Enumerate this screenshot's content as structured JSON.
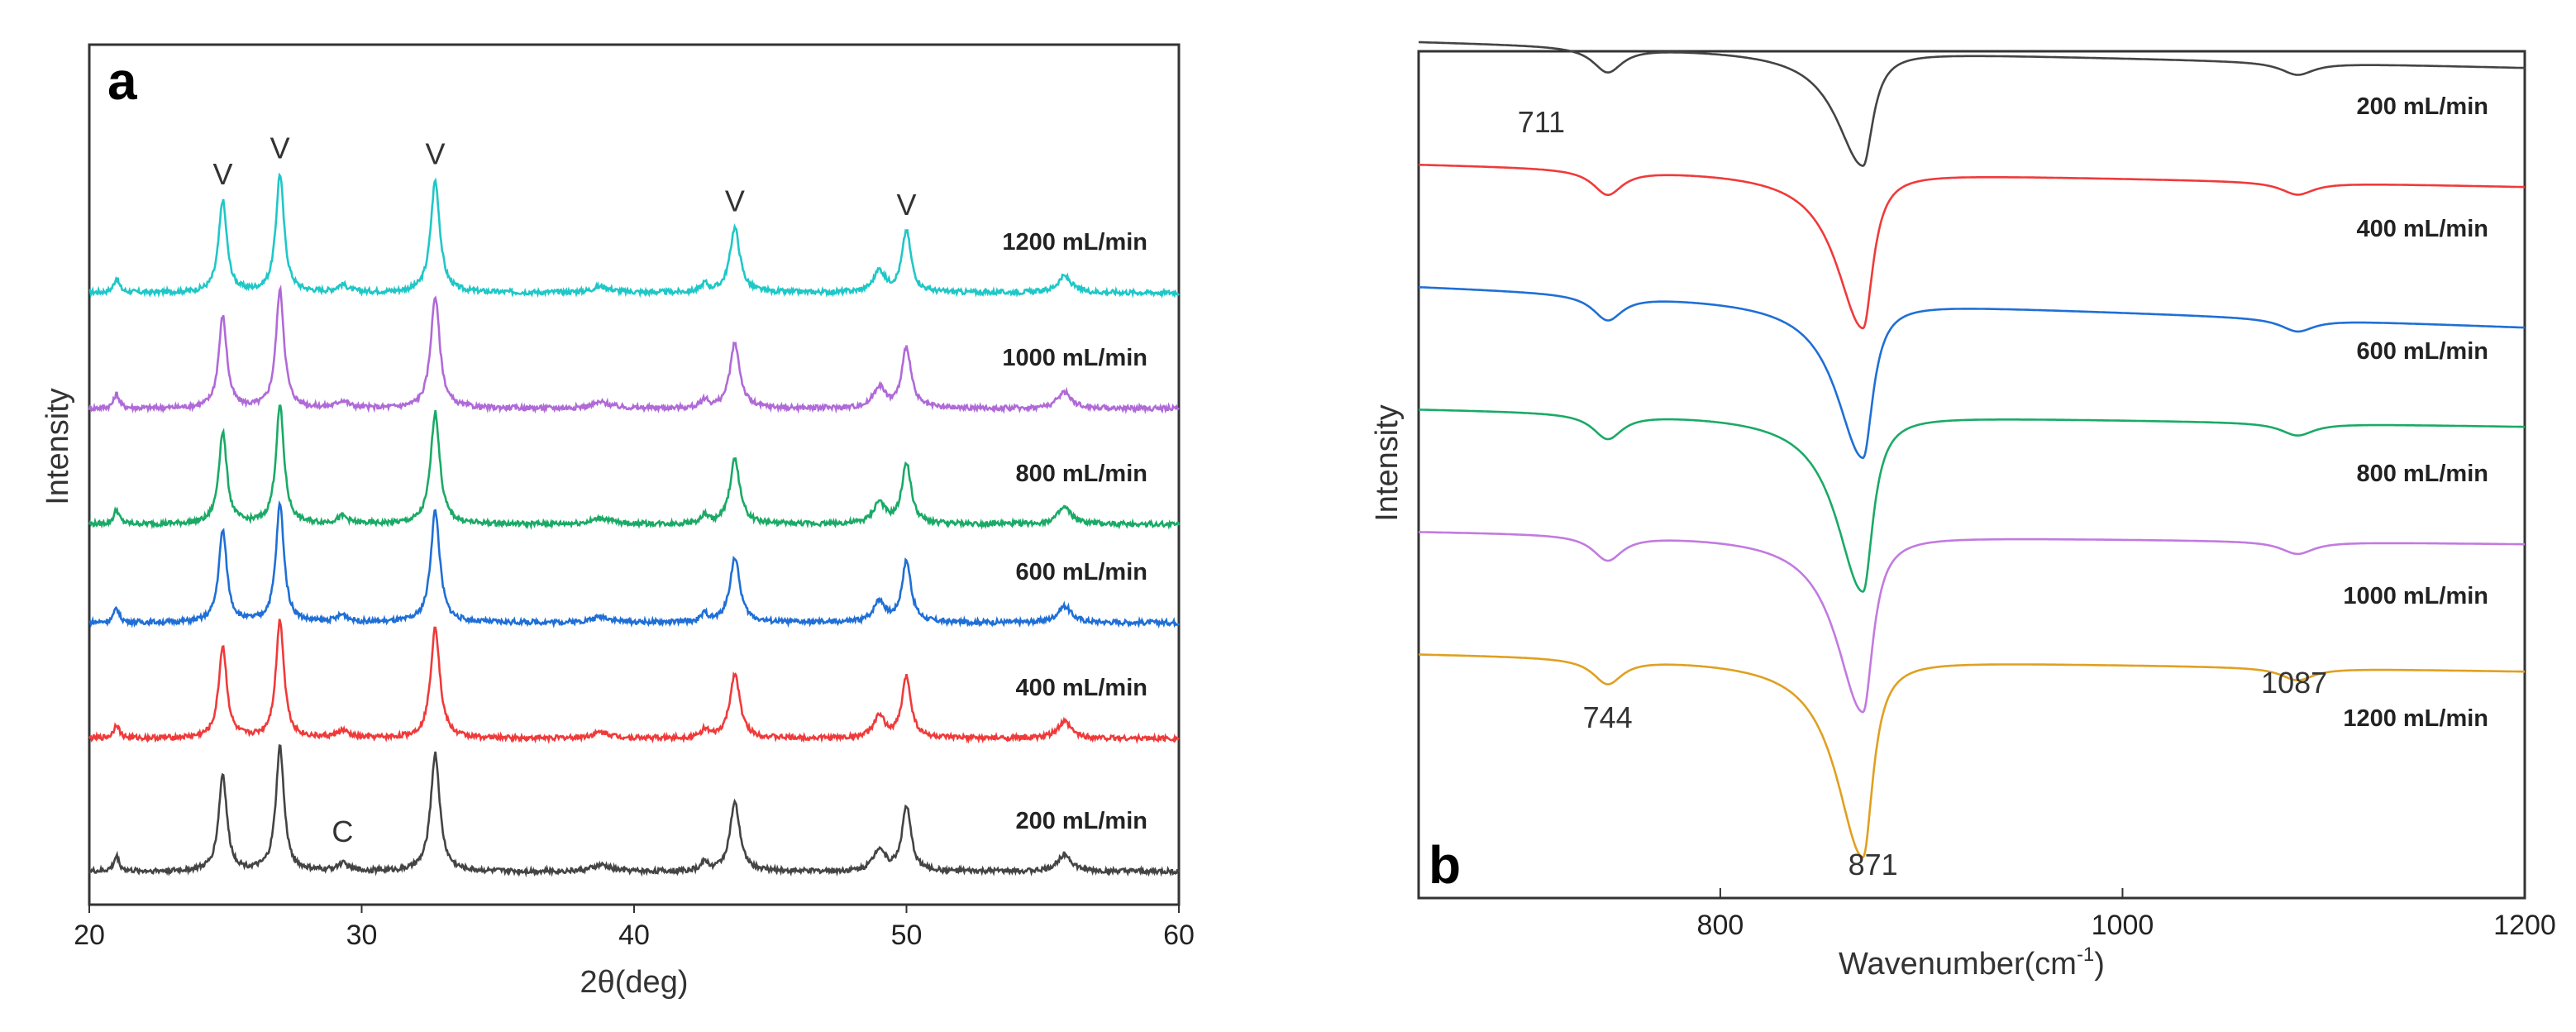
{
  "chart_data": [
    {
      "type": "line",
      "panel_label": "a",
      "xlabel": "2θ(deg)",
      "ylabel": "Intensity",
      "xlim": [
        20,
        60
      ],
      "x_ticks": [
        "20",
        "30",
        "40",
        "50",
        "60"
      ],
      "y_ticks": [],
      "grid": false,
      "legend": "inline-right",
      "peaks": [
        {
          "x": 21.0,
          "h": 0.12,
          "w": 0.12
        },
        {
          "x": 24.9,
          "h": 0.78,
          "w": 0.18
        },
        {
          "x": 27.0,
          "h": 1.0,
          "w": 0.18
        },
        {
          "x": 29.3,
          "h": 0.06,
          "w": 0.25
        },
        {
          "x": 32.7,
          "h": 0.95,
          "w": 0.2
        },
        {
          "x": 38.8,
          "h": 0.05,
          "w": 0.4
        },
        {
          "x": 42.6,
          "h": 0.07,
          "w": 0.15
        },
        {
          "x": 43.7,
          "h": 0.55,
          "w": 0.22
        },
        {
          "x": 49.0,
          "h": 0.18,
          "w": 0.25
        },
        {
          "x": 50.0,
          "h": 0.52,
          "w": 0.2
        },
        {
          "x": 55.8,
          "h": 0.14,
          "w": 0.3
        }
      ],
      "series": [
        {
          "name": "1200 mL/min",
          "color": "#1fc7c7",
          "offset": 5,
          "scale": 0.95
        },
        {
          "name": "1000 mL/min",
          "color": "#b06ad8",
          "offset": 4,
          "scale": 0.95
        },
        {
          "name": "800 mL/min",
          "color": "#1aaa66",
          "offset": 3,
          "scale": 0.95
        },
        {
          "name": "600 mL/min",
          "color": "#1f6fd6",
          "offset": 2.15,
          "scale": 0.95
        },
        {
          "name": "400 mL/min",
          "color": "#f03a3a",
          "offset": 1.15,
          "scale": 0.95
        },
        {
          "name": "200 mL/min",
          "color": "#444444",
          "offset": 0,
          "scale": 1.0
        }
      ],
      "annotations": [
        {
          "text": "V",
          "x": 24.9
        },
        {
          "text": "V",
          "x": 27.0
        },
        {
          "text": "V",
          "x": 32.7
        },
        {
          "text": "V",
          "x": 43.7
        },
        {
          "text": "V",
          "x": 50.0
        },
        {
          "text": "C",
          "x": 29.3
        }
      ]
    },
    {
      "type": "line",
      "panel_label": "b",
      "xlabel": "Wavenumber(cm",
      "xlabel_sup": "-1",
      "xlabel_end": ")",
      "ylabel": "Intensity",
      "xlim": [
        650,
        1200
      ],
      "x_ticks": [
        "800",
        "1000",
        "1200"
      ],
      "y_ticks": [],
      "grid": false,
      "legend": "inline-right",
      "series": [
        {
          "name": "200 mL/min",
          "color": "#444444",
          "offset": 5,
          "depth": 0.55,
          "slope": 0.32
        },
        {
          "name": "400 mL/min",
          "color": "#f03a3a",
          "offset": 4,
          "depth": 0.75,
          "slope": 0.28
        },
        {
          "name": "600 mL/min",
          "color": "#1f6fd6",
          "offset": 3,
          "depth": 0.75,
          "slope": 0.5
        },
        {
          "name": "800 mL/min",
          "color": "#1aaa66",
          "offset": 2,
          "depth": 0.85,
          "slope": 0.22
        },
        {
          "name": "1000 mL/min",
          "color": "#c27ae0",
          "offset": 1,
          "depth": 0.85,
          "slope": 0.16
        },
        {
          "name": "1200 mL/min",
          "color": "#e0a020",
          "offset": 0,
          "depth": 0.95,
          "slope": 0.22
        }
      ],
      "annotations": [
        {
          "text": "711"
        },
        {
          "text": "744"
        },
        {
          "text": "871"
        },
        {
          "text": "1087"
        }
      ]
    }
  ]
}
